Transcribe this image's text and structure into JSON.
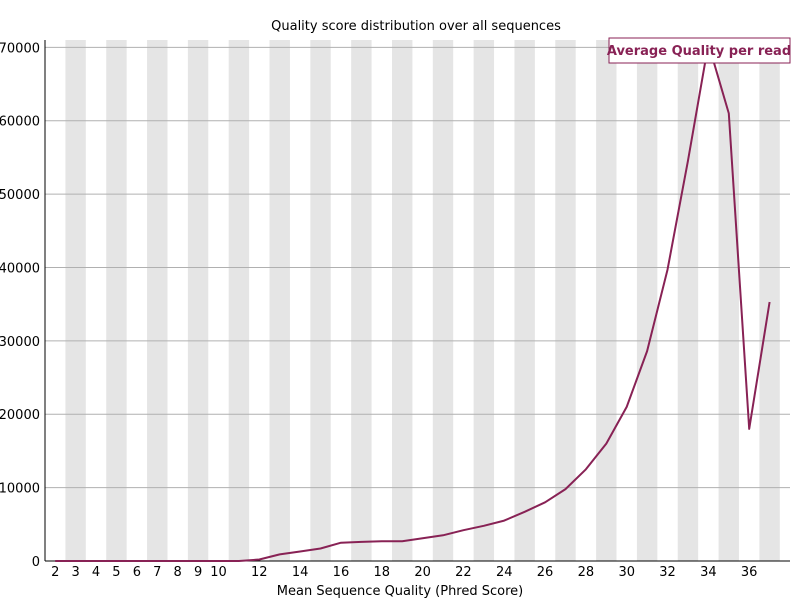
{
  "chart_data": {
    "type": "line",
    "title": "Quality score distribution over all sequences",
    "xlabel": "Mean Sequence Quality (Phred Score)",
    "ylabel": "",
    "x": [
      2,
      3,
      4,
      5,
      6,
      7,
      8,
      9,
      10,
      11,
      12,
      13,
      14,
      15,
      16,
      17,
      18,
      19,
      20,
      21,
      22,
      23,
      24,
      25,
      26,
      27,
      28,
      29,
      30,
      31,
      32,
      33,
      34,
      35,
      36,
      37
    ],
    "series": [
      {
        "name": "Average Quality per read",
        "values": [
          0,
          0,
          0,
          0,
          0,
          0,
          0,
          0,
          0,
          0,
          200,
          900,
          1300,
          1700,
          2500,
          2600,
          2700,
          2700,
          3100,
          3500,
          4200,
          4800,
          5500,
          6700,
          8000,
          9800,
          12500,
          16000,
          21000,
          28600,
          39700,
          54500,
          70500,
          61000,
          18000,
          35300
        ]
      }
    ],
    "x_tick_labels": [
      "2",
      "3",
      "4",
      "5",
      "6",
      "7",
      "8",
      "9",
      "10",
      "12",
      "14",
      "16",
      "18",
      "20",
      "22",
      "24",
      "26",
      "28",
      "30",
      "32",
      "34",
      "36"
    ],
    "y_ticks": [
      0,
      10000,
      20000,
      30000,
      40000,
      50000,
      60000,
      70000
    ],
    "xlim": [
      2,
      37
    ],
    "ylim": [
      0,
      71000
    ],
    "grid": "horizontal",
    "column_bands": "alternating-grey",
    "legend_position": "top-right",
    "colors": {
      "line": "#882255",
      "band": "#e5e5e5",
      "grid": "#b0b0b0",
      "axis": "#000000"
    }
  }
}
